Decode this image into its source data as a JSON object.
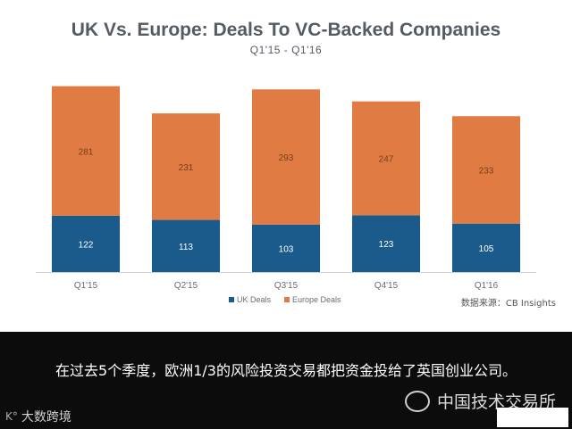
{
  "chart_data": {
    "type": "bar",
    "stacked": true,
    "title": "UK Vs. Europe: Deals To VC-Backed Companies",
    "subtitle": "Q1'15 - Q1'16",
    "categories": [
      "Q1'15",
      "Q2'15",
      "Q3'15",
      "Q4'15",
      "Q1'16"
    ],
    "series": [
      {
        "name": "UK Deals",
        "values": [
          122,
          113,
          103,
          123,
          105
        ],
        "color": "#1a5b8c"
      },
      {
        "name": "Europe Deals",
        "values": [
          281,
          231,
          293,
          247,
          233
        ],
        "color": "#e07b43"
      }
    ],
    "ylim": [
      0,
      410
    ],
    "legend_position": "bottom",
    "source": "数据来源：CB Insights"
  },
  "caption": "在过去5个季度，欧洲1/3的风险投资交易都把资金投给了英国创业公司。",
  "watermark_right": "中国技术交易所",
  "watermark_left": "大数跨境"
}
